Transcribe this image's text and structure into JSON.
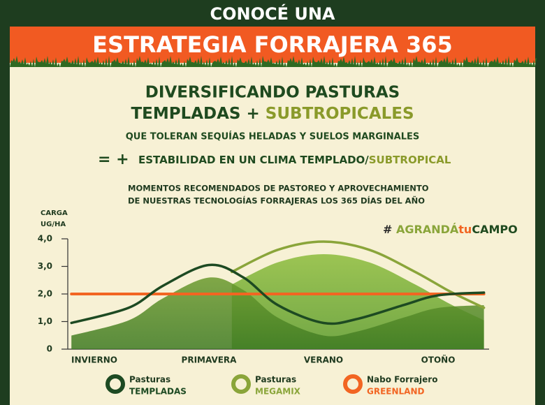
{
  "header": {
    "line1": "CONOCÉ UNA",
    "line2": "ESTRATEGIA FORRAJERA 365"
  },
  "headline": {
    "line1": "DIVERSIFICANDO PASTURAS",
    "line2a": "TEMPLADAS +",
    "line2b": "SUBTROPICALES",
    "subline": "QUE TOLERAN SEQUÍAS HELADAS Y SUELOS MARGINALES",
    "equation_symbols": "= +",
    "equation_text": "ESTABILIDAD EN UN CLIMA TEMPLADO/",
    "equation_highlight": "SUBTROPICAL"
  },
  "hashtag": {
    "symbol": "#",
    "part1": "AGRANDÁ",
    "part2": "tu",
    "part3": "CAMPO"
  },
  "chart_data": {
    "type": "line",
    "title_lines": [
      "MOMENTOS RECOMENDADOS DE PASTOREO Y APROVECHAMIENTO",
      "DE NUESTRAS TECNOLOGÍAS FORRAJERAS LOS 365 DÍAS DEL AÑO"
    ],
    "y_label_lines": [
      "CARGA",
      "UG/HA"
    ],
    "categories": [
      "INVIERNO",
      "PRIMAVERA",
      "VERANO",
      "OTOÑO"
    ],
    "xlim": [
      -0.25,
      3.45
    ],
    "ylim": [
      0,
      4
    ],
    "yticks": [
      0,
      {
        "value": 1,
        "label": "1,0"
      },
      {
        "value": 2,
        "label": "2,0"
      },
      {
        "value": 3,
        "label": "3,0"
      },
      {
        "value": 4,
        "label": "4,0"
      }
    ],
    "series": [
      {
        "name": "Pasturas",
        "subname": "TEMPLADAS",
        "color": "#1d4a22",
        "x": [
          -0.2,
          0.3,
          0.6,
          1,
          1.3,
          1.6,
          2,
          2.3,
          2.7,
          3,
          3.4
        ],
        "values": [
          0.95,
          1.5,
          2.3,
          3.05,
          2.6,
          1.6,
          0.95,
          1.1,
          1.6,
          1.95,
          2.05
        ]
      },
      {
        "name": "Pasturas",
        "subname": "MEGAMIX",
        "color": "#8aa53a",
        "x": [
          1.2,
          1.6,
          2,
          2.4,
          2.8,
          3.1,
          3.4
        ],
        "values": [
          2.8,
          3.6,
          3.9,
          3.6,
          2.8,
          2.1,
          1.5
        ]
      },
      {
        "name": "Nabo Forrajero",
        "subname": "GREENLAND",
        "color": "#f26522",
        "x": [
          -0.2,
          3.4
        ],
        "values": [
          2,
          2
        ]
      }
    ]
  }
}
